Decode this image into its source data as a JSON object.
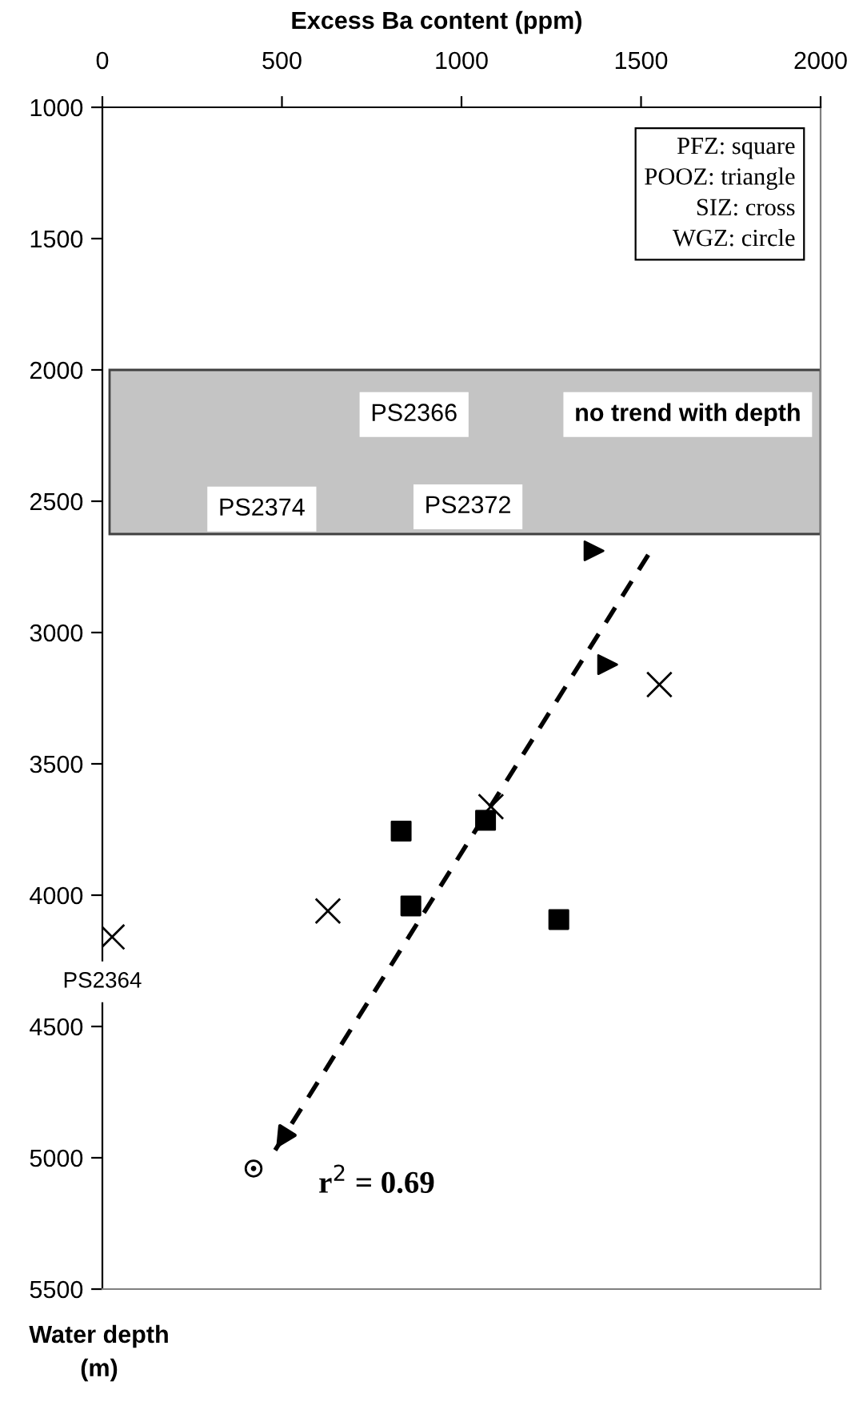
{
  "chart_data": {
    "type": "scatter",
    "xlabel": "Excess Ba content (ppm)",
    "ylabel": "Water depth\n(m)",
    "xlim": [
      0,
      2000
    ],
    "xticks": [
      0,
      500,
      1000,
      1500,
      2000
    ],
    "ylim": [
      5500,
      1000
    ],
    "yticks": [
      1000,
      1500,
      2000,
      2500,
      3000,
      3500,
      4000,
      4500,
      5000,
      5500
    ],
    "grid": false,
    "series": [
      {
        "marker": "square",
        "color": "#000000",
        "x": [
          832,
          1067,
          859,
          1271
        ],
        "values": [
          3756,
          3715,
          4041,
          4093
        ]
      },
      {
        "marker": "triangle",
        "color": "#000000",
        "x": [
          1369,
          1407
        ],
        "values": [
          2689,
          3122
        ]
      },
      {
        "marker": "cross",
        "color": "#000000",
        "x": [
          1551,
          1082,
          628,
          27
        ],
        "values": [
          3198,
          3663,
          4060,
          4159
        ]
      },
      {
        "marker": "circle",
        "color": "#000000",
        "x": [
          421
        ],
        "values": [
          5041
        ]
      },
      {
        "type": "line",
        "line_style": "dashed",
        "color": "#000000",
        "x": [
          1520,
          477
        ],
        "values": [
          2704,
          4980
        ]
      }
    ],
    "bands": [
      {
        "axis": "y",
        "from": 2000,
        "to": 2625,
        "color": "#c4c4c4"
      }
    ],
    "annotations": [
      "PFZ: square\nPOOZ: triangle\nSIZ: cross\nWGZ: circle",
      "PS2366",
      "no trend with depth",
      "PS2374",
      "PS2372",
      "PS2364",
      "r$^{2}$ = 0.69"
    ]
  }
}
